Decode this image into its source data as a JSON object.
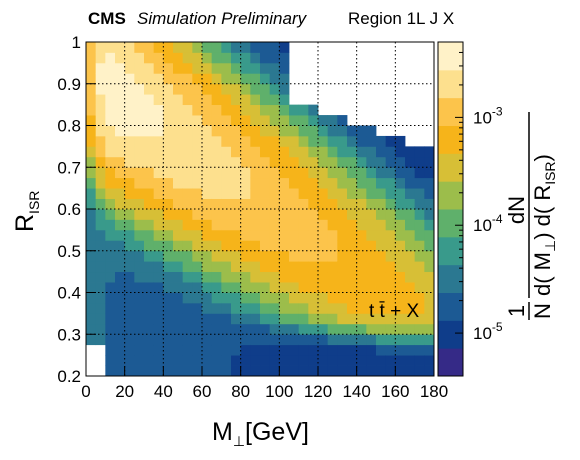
{
  "chart_data": {
    "type": "heatmap",
    "header": {
      "experiment": "CMS",
      "status": "Simulation Preliminary",
      "region": "Region 1L J X"
    },
    "annotation": "t t̄ + X",
    "xlabel": {
      "main": "M",
      "sub": "⊥",
      "unit": "[GeV]"
    },
    "ylabel": {
      "main": "R",
      "sub": "ISR"
    },
    "zlabel": {
      "numerator": "1",
      "denominator": "N",
      "dN": "dN",
      "d_open": "d( M",
      "perp": "⊥",
      "d_mid": ") d( R",
      "isr": "ISR",
      "d_close": ")"
    },
    "xlim": [
      0,
      180
    ],
    "ylim": [
      0.2,
      1.0
    ],
    "zlim": [
      4e-06,
      0.005
    ],
    "zscale": "log",
    "x_ticks": [
      "0",
      "20",
      "40",
      "60",
      "80",
      "100",
      "120",
      "140",
      "160",
      "180"
    ],
    "y_ticks": [
      "0.2",
      "0.3",
      "0.4",
      "0.5",
      "0.6",
      "0.7",
      "0.8",
      "0.9",
      "1"
    ],
    "z_ticks": [
      {
        "value": 1e-05,
        "base": "10",
        "exp": "-5"
      },
      {
        "value": 0.0001,
        "base": "10",
        "exp": "-4"
      },
      {
        "value": 0.001,
        "base": "10",
        "exp": "-3"
      }
    ],
    "bins": {
      "nx": 36,
      "ny": 32,
      "x_width": 5,
      "y_width": 0.025
    },
    "grid": true,
    "palette": [
      "#352a87",
      "#0f3d8a",
      "#1c5a94",
      "#2b7891",
      "#399a8b",
      "#5fb06b",
      "#9cbd4b",
      "#d7bf36",
      "#f6b41a",
      "#fcc44b",
      "#fde08e",
      "#fff2c8"
    ]
  }
}
